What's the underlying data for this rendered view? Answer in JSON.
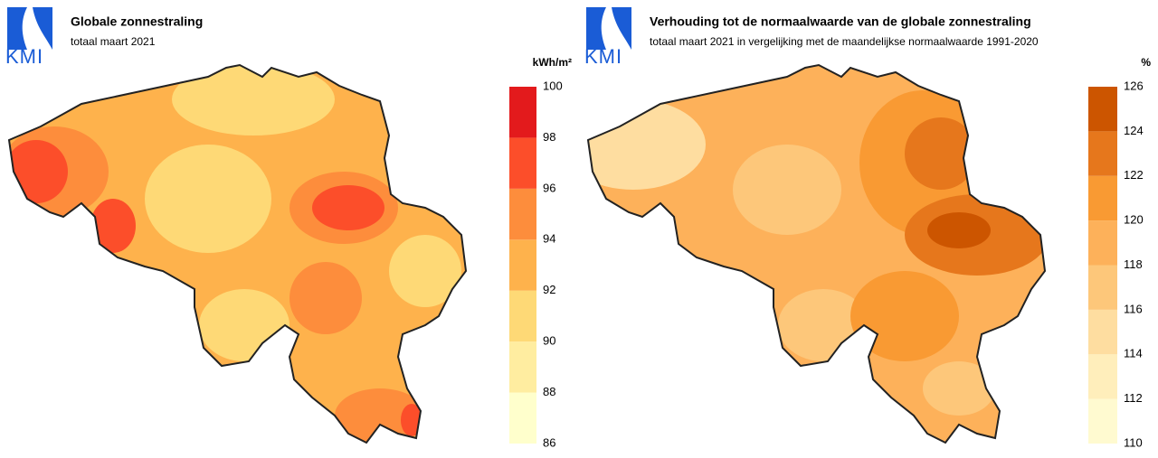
{
  "panels": [
    {
      "logo": "KMI",
      "title": "Globale zonnestraling",
      "subtitle": "totaal maart 2021",
      "unit": "kWh/m²",
      "legend": {
        "ticks": [
          86,
          88,
          90,
          92,
          94,
          96,
          98,
          100
        ],
        "colors": [
          "#ffffcc",
          "#ffeda0",
          "#fed976",
          "#feb24c",
          "#fd8d3c",
          "#fc4e2a",
          "#e31a1c"
        ]
      }
    },
    {
      "logo": "KMI",
      "title": "Verhouding tot de normaalwaarde van de globale zonnestraling",
      "subtitle": "totaal maart 2021 in vergelijking met de maandelijkse normaalwaarde 1991-2020",
      "unit": "%",
      "legend": {
        "ticks": [
          110,
          112,
          114,
          116,
          118,
          120,
          122,
          124,
          126
        ],
        "colors": [
          "#fffad0",
          "#ffeebb",
          "#fedda0",
          "#fdc77a",
          "#fdb15a",
          "#f99a33",
          "#e6771c",
          "#cc5500"
        ]
      }
    }
  ]
}
